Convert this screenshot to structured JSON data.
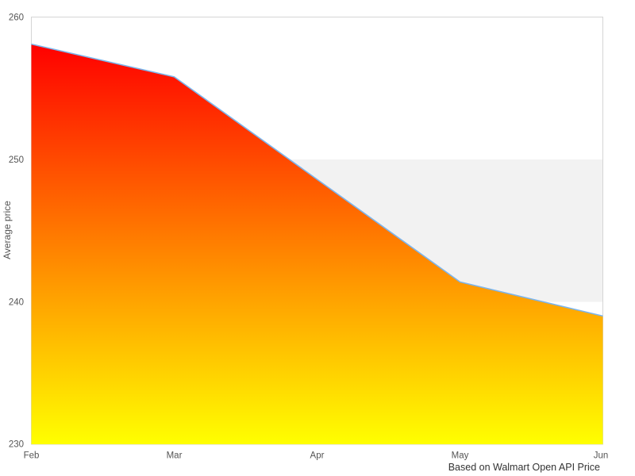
{
  "chart_data": {
    "type": "area",
    "categories": [
      "Feb",
      "Mar",
      "Apr",
      "May",
      "Jun"
    ],
    "values": [
      258.1,
      255.8,
      248.6,
      241.4,
      239.0
    ],
    "series": [
      {
        "name": "Average price",
        "values": [
          258.1,
          255.8,
          248.6,
          241.4,
          239.0
        ]
      }
    ],
    "title": "",
    "xlabel": "",
    "ylabel": "Average price",
    "ylim": [
      230,
      260
    ],
    "ytick_interval": 10,
    "grid": false,
    "legend": "none",
    "markers": false,
    "plot_band": {
      "from": 240,
      "to": 250
    }
  },
  "axes": {
    "y_title": "Average price",
    "y_tick_labels": [
      "260",
      "250",
      "240",
      "230"
    ],
    "x_tick_labels": [
      "Feb",
      "Mar",
      "Apr",
      "May",
      "Jun"
    ]
  },
  "caption": "Based on Walmart Open API Price",
  "colors": {
    "area_gradient_top": "#ff0000",
    "area_gradient_bottom": "#ffff00",
    "series_line": "#7cb5ec",
    "plot_band": "#f2f2f2",
    "plot_border": "#d5d5d5",
    "tick_label": "#555555",
    "caption_text": "#333333",
    "background": "#ffffff"
  }
}
